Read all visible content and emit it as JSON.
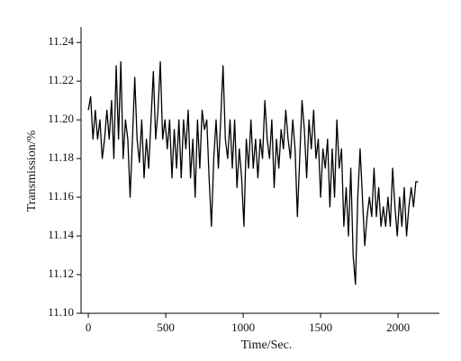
{
  "chart_data": {
    "type": "line",
    "xlabel": "Time/Sec.",
    "ylabel": "Transmission/%",
    "x": [
      0,
      15,
      30,
      45,
      60,
      75,
      90,
      105,
      120,
      135,
      150,
      165,
      180,
      195,
      210,
      225,
      240,
      255,
      270,
      285,
      300,
      315,
      330,
      345,
      360,
      375,
      390,
      405,
      420,
      435,
      450,
      465,
      480,
      495,
      510,
      525,
      540,
      555,
      570,
      585,
      600,
      615,
      630,
      645,
      660,
      675,
      690,
      705,
      720,
      735,
      750,
      765,
      780,
      795,
      810,
      825,
      840,
      855,
      870,
      885,
      900,
      915,
      930,
      945,
      960,
      975,
      990,
      1005,
      1020,
      1035,
      1050,
      1065,
      1080,
      1095,
      1110,
      1125,
      1140,
      1155,
      1170,
      1185,
      1200,
      1215,
      1230,
      1245,
      1260,
      1275,
      1290,
      1305,
      1320,
      1335,
      1350,
      1365,
      1380,
      1395,
      1410,
      1425,
      1440,
      1455,
      1470,
      1485,
      1500,
      1515,
      1530,
      1545,
      1560,
      1575,
      1590,
      1605,
      1620,
      1635,
      1650,
      1665,
      1680,
      1695,
      1710,
      1725,
      1740,
      1755,
      1770,
      1785,
      1800,
      1815,
      1830,
      1845,
      1860,
      1875,
      1890,
      1905,
      1920,
      1935,
      1950,
      1965,
      1980,
      1995,
      2010,
      2025,
      2040,
      2055,
      2070,
      2085,
      2100,
      2115,
      2130
    ],
    "series": [
      {
        "color": "#000000",
        "values": [
          11.205,
          11.212,
          11.19,
          11.205,
          11.19,
          11.2,
          11.18,
          11.19,
          11.205,
          11.19,
          11.21,
          11.18,
          11.228,
          11.19,
          11.23,
          11.18,
          11.2,
          11.19,
          11.16,
          11.19,
          11.222,
          11.19,
          11.178,
          11.2,
          11.17,
          11.19,
          11.175,
          11.2,
          11.225,
          11.19,
          11.205,
          11.23,
          11.19,
          11.2,
          11.185,
          11.2,
          11.17,
          11.195,
          11.175,
          11.2,
          11.17,
          11.2,
          11.185,
          11.205,
          11.17,
          11.19,
          11.16,
          11.2,
          11.175,
          11.205,
          11.195,
          11.2,
          11.17,
          11.145,
          11.18,
          11.2,
          11.175,
          11.2,
          11.228,
          11.19,
          11.18,
          11.2,
          11.175,
          11.2,
          11.165,
          11.185,
          11.17,
          11.145,
          11.19,
          11.175,
          11.2,
          11.175,
          11.19,
          11.17,
          11.19,
          11.18,
          11.21,
          11.19,
          11.18,
          11.2,
          11.165,
          11.19,
          11.175,
          11.195,
          11.185,
          11.205,
          11.19,
          11.18,
          11.2,
          11.185,
          11.15,
          11.18,
          11.21,
          11.195,
          11.17,
          11.2,
          11.185,
          11.205,
          11.18,
          11.19,
          11.16,
          11.185,
          11.175,
          11.19,
          11.155,
          11.185,
          11.16,
          11.2,
          11.175,
          11.185,
          11.145,
          11.165,
          11.14,
          11.175,
          11.13,
          11.115,
          11.16,
          11.185,
          11.16,
          11.135,
          11.15,
          11.16,
          11.15,
          11.175,
          11.15,
          11.165,
          11.145,
          11.155,
          11.145,
          11.16,
          11.145,
          11.175,
          11.155,
          11.14,
          11.16,
          11.145,
          11.165,
          11.14,
          11.155,
          11.165,
          11.155,
          11.168,
          11.168
        ]
      }
    ],
    "xlim": [
      -47,
      2267
    ],
    "xticks": [
      0,
      500,
      1000,
      1500,
      2000
    ],
    "ylim": [
      11.1,
      11.248
    ],
    "yticks": [
      {
        "value": 11.1,
        "label": "11.10"
      },
      11.12,
      11.14,
      11.16,
      11.18,
      {
        "value": 11.2,
        "label": "11.20"
      },
      11.22,
      11.24
    ]
  }
}
